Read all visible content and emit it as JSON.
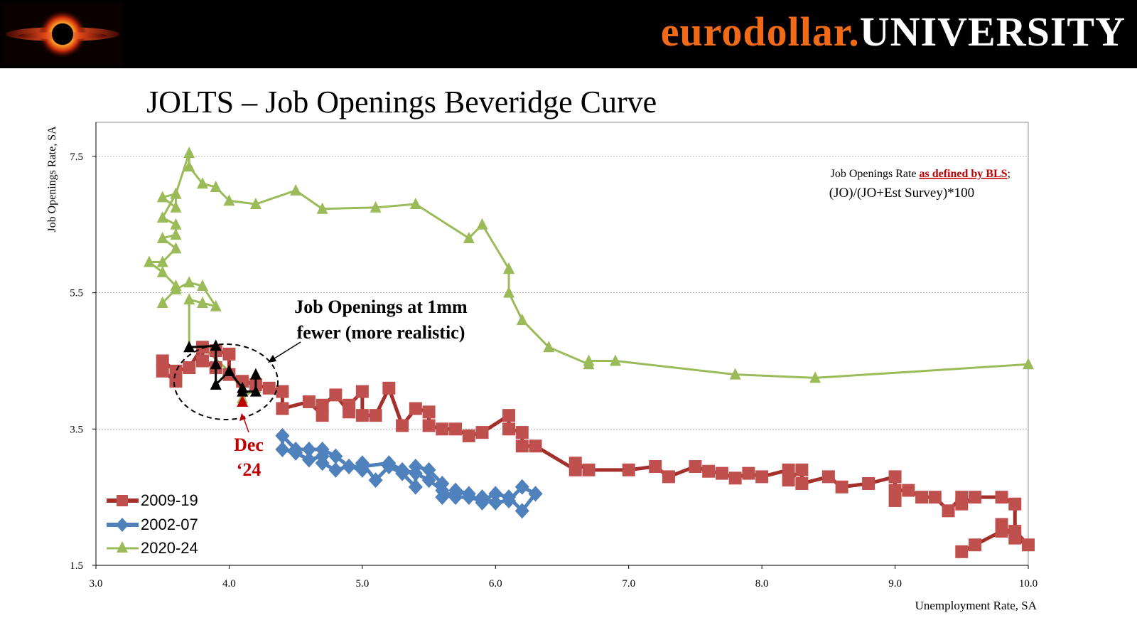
{
  "header": {
    "brand_part1": "eurodollar.",
    "brand_part2": "UNIVERSITY",
    "brand_color": "#f06a18"
  },
  "title": "JOLTS – Job Openings Beveridge Curve",
  "chart_data": {
    "type": "line",
    "title": "JOLTS – Job Openings Beveridge Curve",
    "xlabel": "Unemployment Rate, SA",
    "ylabel": "Job Openings Rate, SA",
    "xlim": [
      3.0,
      10.0
    ],
    "ylim": [
      1.5,
      8.0
    ],
    "x_ticks": [
      3.0,
      4.0,
      5.0,
      6.0,
      7.0,
      8.0,
      9.0,
      10.0
    ],
    "x_tick_labels": [
      "3.0",
      "4.0",
      "5.0",
      "6.0",
      "7.0",
      "8.0",
      "9.0",
      "10.0"
    ],
    "y_ticks": [
      1.5,
      3.5,
      5.5,
      7.5
    ],
    "y_tick_labels": [
      "1.5",
      "3.5",
      "5.5",
      "7.5"
    ],
    "grid": "horizontal dotted",
    "legend_position": "bottom-left",
    "series": [
      {
        "name": "2020-24",
        "color": "#9bbb59",
        "marker": "triangle",
        "x": [
          10.0,
          8.4,
          7.8,
          6.9,
          6.7,
          6.7,
          6.4,
          6.2,
          6.1,
          6.1,
          6.1,
          5.9,
          5.8,
          5.4,
          5.1,
          4.7,
          4.5,
          4.2,
          4.0,
          3.9,
          3.8,
          3.7,
          3.7,
          3.6,
          3.5,
          3.6,
          3.6,
          3.5,
          3.6,
          3.6,
          3.5,
          3.6,
          3.5,
          3.4,
          3.5,
          3.6,
          3.6,
          3.5,
          3.6,
          3.7,
          3.8,
          3.9,
          3.8,
          3.7,
          3.7,
          3.8,
          4.0,
          4.1,
          4.1,
          4.2
        ],
        "y": [
          4.45,
          4.25,
          4.3,
          4.5,
          4.5,
          4.45,
          4.7,
          5.1,
          5.5,
          5.85,
          5.85,
          6.5,
          6.3,
          6.8,
          6.75,
          6.73,
          7.0,
          6.8,
          6.85,
          7.05,
          7.1,
          7.35,
          7.55,
          6.95,
          6.9,
          6.75,
          6.95,
          6.6,
          6.5,
          6.35,
          6.3,
          6.15,
          5.95,
          5.95,
          5.8,
          5.6,
          5.55,
          5.35,
          5.55,
          5.65,
          5.6,
          5.3,
          5.35,
          5.4,
          4.7,
          4.7,
          4.35,
          4.05,
          3.95,
          4.1
        ]
      },
      {
        "name": "2002-07",
        "color": "#4f81bd",
        "marker": "diamond",
        "x": [
          6.3,
          6.2,
          6.1,
          6.0,
          5.9,
          5.9,
          5.8,
          5.7,
          5.7,
          5.6,
          5.6,
          5.5,
          5.4,
          5.4,
          5.3,
          5.2,
          5.1,
          5.0,
          5.0,
          4.9,
          4.8,
          4.7,
          4.7,
          4.6,
          4.5,
          4.4,
          4.4,
          4.5,
          4.6,
          4.7,
          4.8,
          4.9,
          5.0,
          5.2,
          5.3,
          5.4,
          5.5,
          5.6,
          5.7,
          5.8,
          5.9,
          6.0,
          6.1,
          6.2,
          6.3
        ],
        "y": [
          2.55,
          2.65,
          2.45,
          2.42,
          2.5,
          2.42,
          2.55,
          2.6,
          2.55,
          2.5,
          2.7,
          2.9,
          2.95,
          2.65,
          2.85,
          2.95,
          2.75,
          3.0,
          2.9,
          2.95,
          2.9,
          3.0,
          3.1,
          3.05,
          3.15,
          3.2,
          3.4,
          3.2,
          3.2,
          3.2,
          3.1,
          2.95,
          2.95,
          3.0,
          2.9,
          2.85,
          2.75,
          2.6,
          2.5,
          2.5,
          2.45,
          2.55,
          2.5,
          2.3,
          2.55
        ]
      },
      {
        "name": "2009-19",
        "color": "#c0504d",
        "marker": "square",
        "x": [
          9.5,
          9.6,
          9.8,
          9.8,
          9.8,
          9.9,
          10.0,
          9.9,
          9.9,
          9.8,
          9.6,
          9.5,
          9.5,
          9.4,
          9.3,
          9.2,
          9.1,
          9.0,
          9.0,
          9.0,
          8.8,
          8.6,
          8.5,
          8.3,
          8.3,
          8.2,
          8.2,
          8.0,
          7.9,
          7.8,
          7.7,
          7.6,
          7.5,
          7.3,
          7.2,
          7.0,
          6.7,
          6.6,
          6.6,
          6.3,
          6.2,
          6.2,
          6.1,
          6.1,
          5.9,
          5.8,
          5.7,
          5.6,
          5.5,
          5.5,
          5.4,
          5.3,
          5.2,
          5.1,
          5.0,
          5.0,
          4.9,
          4.9,
          4.8,
          4.7,
          4.7,
          4.6,
          4.4,
          4.4,
          4.3,
          4.2,
          4.1,
          4.0,
          4.0,
          3.9,
          3.9,
          3.8,
          3.8,
          3.7,
          3.6,
          3.5,
          3.5,
          3.6
        ],
        "y": [
          1.7,
          1.8,
          2.0,
          2.1,
          2.1,
          1.9,
          1.8,
          2.0,
          2.4,
          2.5,
          2.5,
          2.4,
          2.5,
          2.3,
          2.5,
          2.5,
          2.6,
          2.6,
          2.45,
          2.8,
          2.7,
          2.65,
          2.8,
          2.7,
          2.9,
          2.75,
          2.9,
          2.8,
          2.85,
          2.78,
          2.85,
          2.88,
          2.95,
          2.8,
          2.95,
          2.9,
          2.9,
          3.0,
          2.9,
          3.25,
          3.25,
          3.45,
          3.5,
          3.7,
          3.45,
          3.4,
          3.5,
          3.5,
          3.55,
          3.75,
          3.8,
          3.55,
          4.1,
          3.7,
          3.7,
          4.05,
          3.85,
          3.75,
          4.0,
          3.85,
          3.7,
          3.9,
          3.8,
          4.05,
          4.1,
          4.15,
          4.2,
          4.3,
          4.6,
          4.65,
          4.4,
          4.5,
          4.7,
          4.4,
          4.35,
          4.5,
          4.35,
          4.2
        ]
      },
      {
        "name": "Job Openings at 1mm fewer",
        "color": "#000000",
        "marker": "triangle",
        "x": [
          3.7,
          3.9,
          3.9,
          3.9,
          4.0,
          4.1,
          4.1,
          4.2,
          4.2
        ],
        "y": [
          4.7,
          4.72,
          4.45,
          4.15,
          4.35,
          4.1,
          4.05,
          4.05,
          4.3
        ]
      }
    ],
    "highlight_point": {
      "label": "Dec '24",
      "x": 4.1,
      "y": 3.9,
      "color": "#c00000"
    },
    "annotations": {
      "callout_line1": "Job Openings at 1mm",
      "callout_line2": "fewer (more realistic)",
      "dec_line1": "Dec",
      "dec_line2": "‘24",
      "note_prefix": "Job Openings Rate ",
      "note_link": "as defined by BLS",
      "note_suffix": ";",
      "note_formula": "(JO)/(JO+Est Survey)*100"
    }
  }
}
